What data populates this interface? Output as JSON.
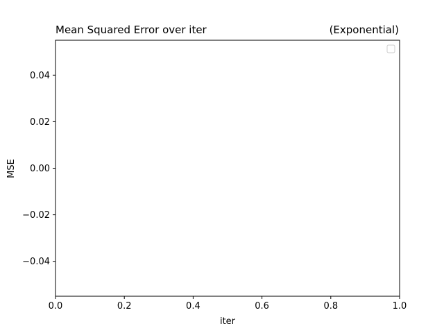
{
  "chart_data": {
    "type": "line",
    "title": "Mean Squared Error over iter",
    "title_right": "(Exponential)",
    "xlabel": "iter",
    "ylabel": "MSE",
    "xlim": [
      0.0,
      1.0
    ],
    "ylim": [
      -0.055,
      0.055
    ],
    "x_ticks": [
      0.0,
      0.2,
      0.4,
      0.6,
      0.8,
      1.0
    ],
    "x_tick_labels": [
      "0.0",
      "0.2",
      "0.4",
      "0.6",
      "0.8",
      "1.0"
    ],
    "y_ticks": [
      -0.04,
      -0.02,
      0.0,
      0.02,
      0.04
    ],
    "y_tick_labels": [
      "−0.04",
      "−0.02",
      "0.00",
      "0.02",
      "0.04"
    ],
    "series": [],
    "grid": false,
    "legend": "upper right",
    "legend_entries": []
  }
}
